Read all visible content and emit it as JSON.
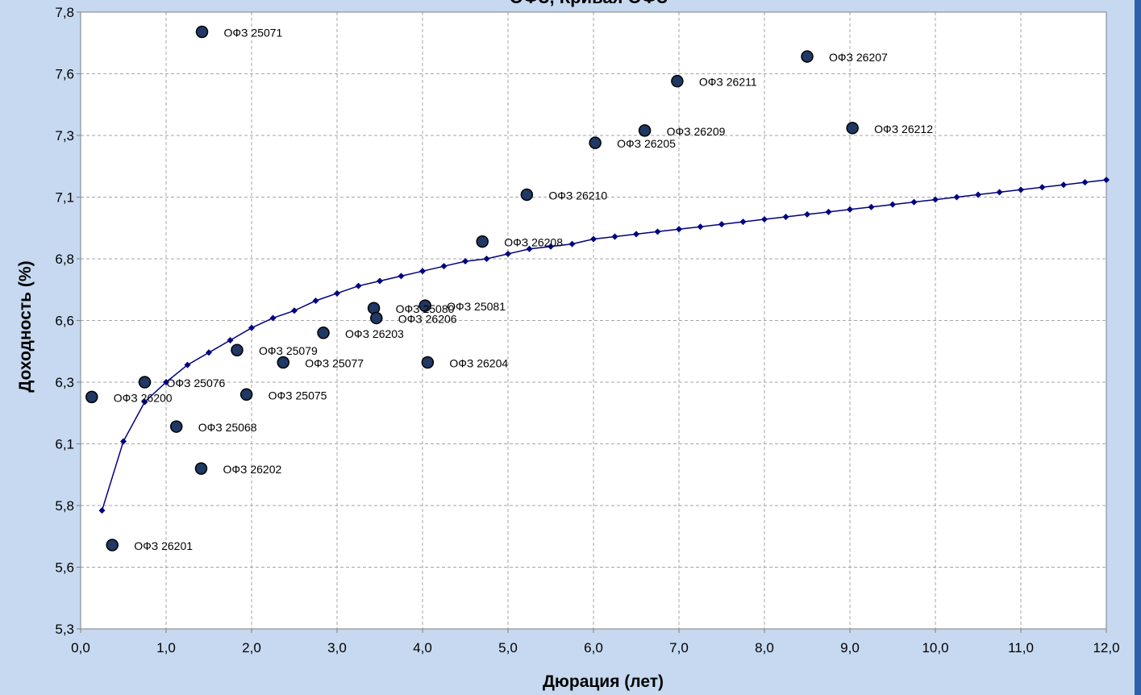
{
  "chart_data": {
    "type": "scatter",
    "title": "ОФЗ, Кривая ОФЗ",
    "xlabel": "Дюрация (лет)",
    "ylabel": "Доходность (%)",
    "xlim": [
      0,
      12
    ],
    "ylim": [
      5.3,
      7.8
    ],
    "x_ticks": [
      "0,0",
      "1,0",
      "2,0",
      "3,0",
      "4,0",
      "5,0",
      "6,0",
      "7,0",
      "8,0",
      "9,0",
      "10,0",
      "11,0",
      "12,0"
    ],
    "y_ticks": [
      "5,3",
      "5,6",
      "5,8",
      "6,1",
      "6,3",
      "6,6",
      "6,8",
      "7,1",
      "7,3",
      "7,6",
      "7,8"
    ],
    "grid": true,
    "colors": {
      "background": "#c6d9f0",
      "plot_area": "#ffffff",
      "curve": "#000080",
      "point_fill": "#1f3864",
      "point_stroke": "#000000",
      "grid": "#a6a6a6"
    },
    "points": [
      {
        "label": "ОФЗ 25071",
        "x": 1.42,
        "y": 7.72
      },
      {
        "label": "ОФЗ 26207",
        "x": 8.5,
        "y": 7.62
      },
      {
        "label": "ОФЗ 26211",
        "x": 6.98,
        "y": 7.52
      },
      {
        "label": "ОФЗ 26209",
        "x": 6.6,
        "y": 7.32
      },
      {
        "label": "ОФЗ 26212",
        "x": 9.03,
        "y": 7.33
      },
      {
        "label": "ОФЗ 26205",
        "x": 6.02,
        "y": 7.27
      },
      {
        "label": "ОФЗ 26210",
        "x": 5.22,
        "y": 7.06
      },
      {
        "label": "ОФЗ 26208",
        "x": 4.7,
        "y": 6.87
      },
      {
        "label": "ОФЗ 25080",
        "x": 3.43,
        "y": 6.6
      },
      {
        "label": "ОФЗ 25081",
        "x": 4.03,
        "y": 6.61
      },
      {
        "label": "ОФЗ 26206",
        "x": 3.46,
        "y": 6.56
      },
      {
        "label": "ОФЗ 26203",
        "x": 2.84,
        "y": 6.5
      },
      {
        "label": "ОФЗ 25079",
        "x": 1.83,
        "y": 6.43
      },
      {
        "label": "ОФЗ 25077",
        "x": 2.37,
        "y": 6.38
      },
      {
        "label": "ОФЗ 26204",
        "x": 4.06,
        "y": 6.38
      },
      {
        "label": "ОФЗ 25076",
        "x": 0.75,
        "y": 6.3
      },
      {
        "label": "ОФЗ 25075",
        "x": 1.94,
        "y": 6.25
      },
      {
        "label": "ОФЗ 26200",
        "x": 0.13,
        "y": 6.24
      },
      {
        "label": "ОФЗ 25068",
        "x": 1.12,
        "y": 6.12
      },
      {
        "label": "ОФЗ 26202",
        "x": 1.41,
        "y": 5.95
      },
      {
        "label": "ОФЗ 26201",
        "x": 0.37,
        "y": 5.64
      }
    ],
    "curve": {
      "x": [
        0.25,
        0.5,
        0.75,
        1.0,
        1.25,
        1.5,
        1.75,
        2.0,
        2.25,
        2.5,
        2.75,
        3.0,
        3.25,
        3.5,
        3.75,
        4.0,
        4.25,
        4.5,
        4.75,
        5.0,
        5.25,
        5.5,
        5.75,
        6.0,
        6.25,
        6.5,
        6.75,
        7.0,
        7.25,
        7.5,
        7.75,
        8.0,
        8.25,
        8.5,
        8.75,
        9.0,
        9.25,
        9.5,
        9.75,
        10.0,
        10.25,
        10.5,
        10.75,
        11.0,
        11.25,
        11.5,
        11.75,
        12.0
      ],
      "y": [
        5.78,
        6.06,
        6.22,
        6.3,
        6.37,
        6.42,
        6.47,
        6.52,
        6.56,
        6.59,
        6.63,
        6.66,
        6.69,
        6.71,
        6.73,
        6.75,
        6.77,
        6.79,
        6.8,
        6.82,
        6.84,
        6.85,
        6.86,
        6.88,
        6.89,
        6.9,
        6.91,
        6.92,
        6.93,
        6.94,
        6.95,
        6.96,
        6.97,
        6.98,
        6.99,
        7.0,
        7.01,
        7.02,
        7.03,
        7.04,
        7.05,
        7.06,
        7.07,
        7.08,
        7.09,
        7.1,
        7.11,
        7.12
      ]
    }
  }
}
